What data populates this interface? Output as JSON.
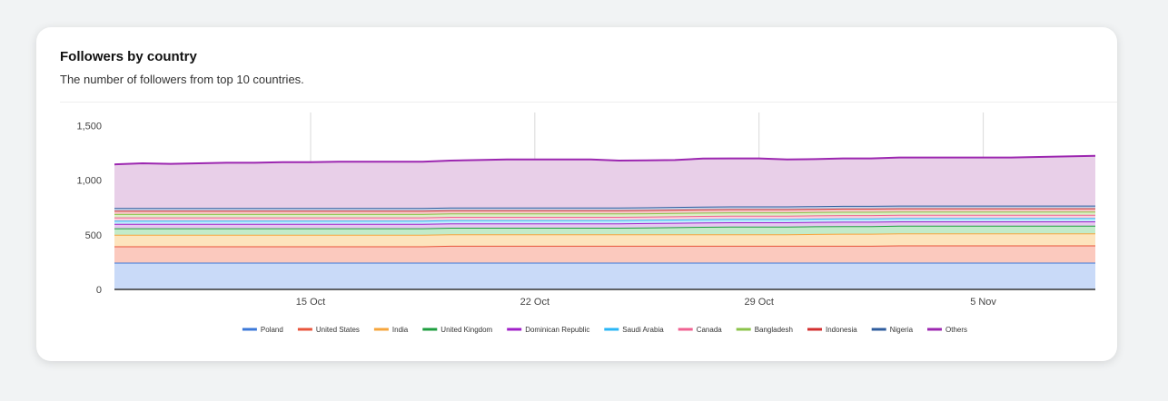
{
  "card": {
    "title": "Followers by country",
    "subtitle": "The number of followers from top 10 countries."
  },
  "chart_data": {
    "type": "area",
    "stacked": true,
    "title": "Followers by country",
    "subtitle": "The number of followers from top 10 countries.",
    "xlabel": "",
    "ylabel": "",
    "x_tick_labels": [
      "15 Oct",
      "22 Oct",
      "29 Oct",
      "5 Nov"
    ],
    "y_ticks": [
      0,
      500,
      1000,
      1500
    ],
    "y_tick_labels": [
      "0",
      "500",
      "1,000",
      "1,500"
    ],
    "ylim": [
      0,
      1620
    ],
    "grid": "vertical lines at x ticks",
    "legend_position": "bottom",
    "x": [
      0,
      1,
      2,
      3,
      4,
      5,
      6,
      7,
      8,
      9,
      10,
      11,
      12,
      13,
      14,
      15,
      16,
      17,
      18,
      19,
      20,
      21,
      22,
      23,
      24,
      25,
      26,
      27,
      28,
      29,
      30,
      31,
      32,
      33,
      34,
      35
    ],
    "x_tick_indices": [
      7,
      15,
      23,
      31
    ],
    "series": [
      {
        "name": "Poland",
        "color": "#3c78d8",
        "fill": "#c9daf8",
        "values": [
          245,
          245,
          245,
          245,
          245,
          245,
          245,
          245,
          245,
          245,
          245,
          245,
          245,
          245,
          245,
          245,
          245,
          245,
          245,
          245,
          245,
          245,
          245,
          245,
          245,
          245,
          245,
          245,
          245,
          245,
          245,
          245,
          245,
          245,
          245,
          245
        ]
      },
      {
        "name": "United States",
        "color": "#e8553c",
        "fill": "#fbc9be",
        "values": [
          150,
          150,
          150,
          150,
          150,
          150,
          150,
          150,
          150,
          150,
          150,
          150,
          155,
          155,
          155,
          155,
          155,
          155,
          155,
          155,
          155,
          155,
          155,
          155,
          155,
          155,
          155,
          155,
          158,
          158,
          158,
          158,
          158,
          158,
          158,
          158
        ]
      },
      {
        "name": "India",
        "color": "#f6a53c",
        "fill": "#fde4bd",
        "values": [
          105,
          105,
          105,
          105,
          105,
          105,
          105,
          105,
          105,
          105,
          105,
          105,
          105,
          105,
          105,
          105,
          105,
          105,
          105,
          105,
          105,
          105,
          105,
          105,
          105,
          108,
          110,
          110,
          110,
          110,
          110,
          110,
          110,
          110,
          110,
          110
        ]
      },
      {
        "name": "United Kingdom",
        "color": "#1e9e3f",
        "fill": "#c3ebc9",
        "values": [
          60,
          60,
          60,
          60,
          60,
          60,
          60,
          60,
          60,
          60,
          60,
          60,
          60,
          60,
          60,
          60,
          60,
          60,
          60,
          62,
          65,
          68,
          70,
          70,
          70,
          70,
          70,
          70,
          70,
          70,
          70,
          70,
          70,
          70,
          70,
          70
        ]
      },
      {
        "name": "Dominican Republic",
        "color": "#a020c8",
        "fill": "#e6c8f0",
        "values": [
          40,
          40,
          40,
          40,
          40,
          40,
          40,
          40,
          40,
          40,
          40,
          40,
          40,
          40,
          40,
          40,
          40,
          40,
          40,
          40,
          40,
          40,
          40,
          40,
          40,
          40,
          40,
          40,
          40,
          40,
          40,
          40,
          40,
          40,
          40,
          40
        ]
      },
      {
        "name": "Saudi Arabia",
        "color": "#29b6f6",
        "fill": "#c3ecfc",
        "values": [
          30,
          30,
          30,
          30,
          30,
          30,
          30,
          30,
          30,
          30,
          30,
          30,
          30,
          30,
          30,
          30,
          30,
          30,
          30,
          30,
          30,
          30,
          30,
          30,
          30,
          30,
          30,
          30,
          30,
          30,
          30,
          30,
          30,
          30,
          30,
          30
        ]
      },
      {
        "name": "Canada",
        "color": "#f06292",
        "fill": "#fbd0de",
        "values": [
          30,
          30,
          30,
          30,
          30,
          30,
          30,
          30,
          30,
          30,
          30,
          30,
          30,
          30,
          30,
          30,
          30,
          30,
          30,
          30,
          30,
          30,
          30,
          30,
          30,
          30,
          30,
          30,
          30,
          30,
          30,
          30,
          30,
          30,
          30,
          30
        ]
      },
      {
        "name": "Bangladesh",
        "color": "#8bc34a",
        "fill": "#dcefc8",
        "values": [
          30,
          30,
          30,
          30,
          30,
          30,
          30,
          30,
          30,
          30,
          30,
          30,
          30,
          30,
          30,
          30,
          30,
          30,
          30,
          30,
          30,
          30,
          30,
          30,
          30,
          30,
          30,
          30,
          30,
          30,
          30,
          30,
          30,
          30,
          30,
          30
        ]
      },
      {
        "name": "Indonesia",
        "color": "#d32f2f",
        "fill": "#f5c6c6",
        "values": [
          30,
          30,
          30,
          30,
          30,
          30,
          30,
          30,
          30,
          30,
          30,
          30,
          30,
          30,
          30,
          30,
          30,
          30,
          30,
          30,
          30,
          30,
          30,
          30,
          30,
          30,
          30,
          30,
          30,
          30,
          30,
          30,
          30,
          30,
          30,
          30
        ]
      },
      {
        "name": "Nigeria",
        "color": "#2f5d9e",
        "fill": "#c6d3e8",
        "values": [
          25,
          25,
          25,
          25,
          25,
          25,
          25,
          25,
          25,
          25,
          25,
          25,
          25,
          25,
          25,
          25,
          25,
          25,
          25,
          25,
          25,
          25,
          25,
          25,
          25,
          25,
          25,
          25,
          25,
          25,
          25,
          25,
          25,
          25,
          25,
          25
        ]
      },
      {
        "name": "Others",
        "color": "#9c27b0",
        "fill": "#e8cfe8",
        "values": [
          400,
          410,
          405,
          410,
          415,
          415,
          420,
          420,
          425,
          425,
          425,
          425,
          430,
          435,
          440,
          440,
          440,
          440,
          430,
          430,
          430,
          440,
          440,
          440,
          430,
          430,
          435,
          435,
          440,
          440,
          440,
          440,
          440,
          445,
          450,
          455
        ]
      }
    ]
  }
}
